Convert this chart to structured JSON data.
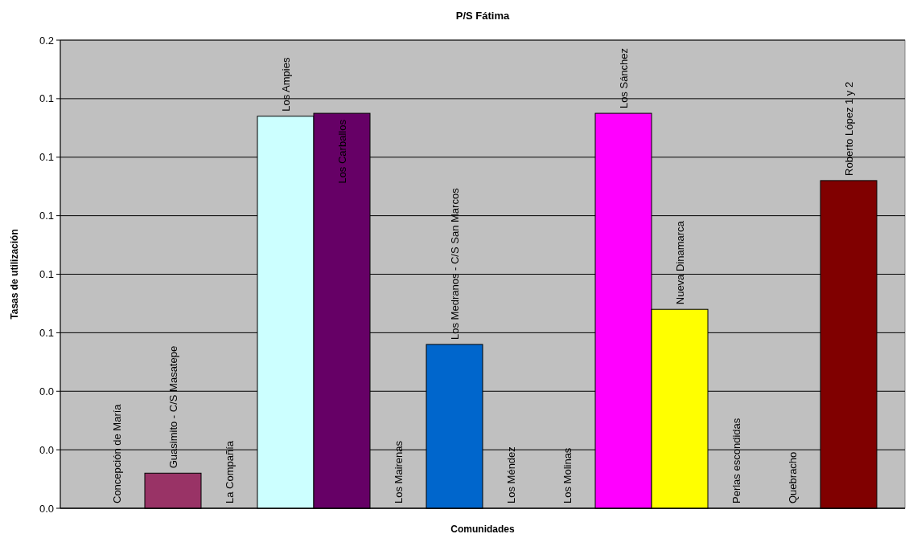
{
  "chart_data": {
    "type": "bar",
    "title": "P/S Fátima",
    "xlabel": "Comunidades",
    "ylabel": "Tasas de utilización",
    "categories": [
      "Concepción de María",
      "Guasimito - C/S Masatepe",
      "La Compañía",
      "Los Ampies",
      "Los Carballos",
      "Los Mairenas",
      "Los Medranos - C/S San Marcos",
      "Los Méndez",
      "Los Molinas",
      "Los Sánchez",
      "Nueva Dinamarca",
      "Perlas escondidas",
      "Quebracho",
      "Roberto López 1 y 2"
    ],
    "values": [
      0,
      0.012,
      0,
      0.134,
      0.135,
      0,
      0.056,
      0,
      0,
      0.135,
      0.068,
      0,
      0,
      0.112
    ],
    "colors": [
      "#993366",
      "#993366",
      "#993366",
      "#ccffff",
      "#660066",
      "#0066cc",
      "#0066cc",
      "#0066cc",
      "#0066cc",
      "#ff00ff",
      "#ffff00",
      "#800000",
      "#800000",
      "#800000"
    ],
    "ylim": [
      0,
      0.16
    ],
    "yticks": [
      {
        "value": 0,
        "label": "0.0"
      },
      {
        "value": 0.02,
        "label": "0.0"
      },
      {
        "value": 0.04,
        "label": "0.0"
      },
      {
        "value": 0.06,
        "label": "0.1"
      },
      {
        "value": 0.08,
        "label": "0.1"
      },
      {
        "value": 0.1,
        "label": "0.1"
      },
      {
        "value": 0.12,
        "label": "0.1"
      },
      {
        "value": 0.14,
        "label": "0.1"
      },
      {
        "value": 0.16,
        "label": "0.2"
      }
    ],
    "grid": "y"
  }
}
